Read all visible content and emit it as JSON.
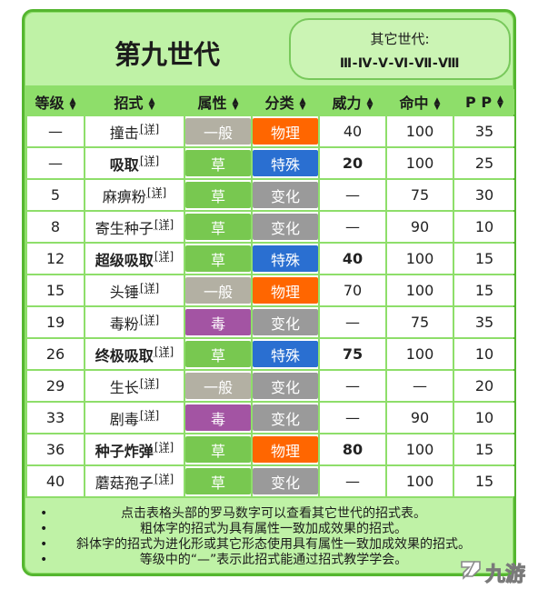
{
  "header": {
    "generation_title": "第九世代",
    "other_generations_label": "其它世代:",
    "other_generations_links": "Ⅲ-Ⅳ-Ⅴ-Ⅵ-Ⅶ-Ⅷ"
  },
  "table": {
    "columns": [
      "等级",
      "招式",
      "属性",
      "分类",
      "威力",
      "命中",
      "P P"
    ],
    "detail_label": "[详]",
    "rows": [
      {
        "level": "—",
        "move": "撞击",
        "bold": false,
        "type": "一般",
        "category": "物理",
        "power": "40",
        "accuracy": "100",
        "pp": "35"
      },
      {
        "level": "—",
        "move": "吸取",
        "bold": true,
        "type": "草",
        "category": "特殊",
        "power": "20",
        "accuracy": "100",
        "pp": "25"
      },
      {
        "level": "5",
        "move": "麻痹粉",
        "bold": false,
        "type": "草",
        "category": "变化",
        "power": "—",
        "accuracy": "75",
        "pp": "30"
      },
      {
        "level": "8",
        "move": "寄生种子",
        "bold": false,
        "type": "草",
        "category": "变化",
        "power": "—",
        "accuracy": "90",
        "pp": "10"
      },
      {
        "level": "12",
        "move": "超级吸取",
        "bold": true,
        "type": "草",
        "category": "特殊",
        "power": "40",
        "accuracy": "100",
        "pp": "15"
      },
      {
        "level": "15",
        "move": "头锤",
        "bold": false,
        "type": "一般",
        "category": "物理",
        "power": "70",
        "accuracy": "100",
        "pp": "15"
      },
      {
        "level": "19",
        "move": "毒粉",
        "bold": false,
        "type": "毒",
        "category": "变化",
        "power": "—",
        "accuracy": "75",
        "pp": "35"
      },
      {
        "level": "26",
        "move": "终极吸取",
        "bold": true,
        "type": "草",
        "category": "特殊",
        "power": "75",
        "accuracy": "100",
        "pp": "10"
      },
      {
        "level": "29",
        "move": "生长",
        "bold": false,
        "type": "一般",
        "category": "变化",
        "power": "—",
        "accuracy": "—",
        "pp": "20"
      },
      {
        "level": "33",
        "move": "剧毒",
        "bold": false,
        "type": "毒",
        "category": "变化",
        "power": "—",
        "accuracy": "90",
        "pp": "10"
      },
      {
        "level": "36",
        "move": "种子炸弹",
        "bold": true,
        "type": "草",
        "category": "物理",
        "power": "80",
        "accuracy": "100",
        "pp": "15"
      },
      {
        "level": "40",
        "move": "蘑菇孢子",
        "bold": false,
        "type": "草",
        "category": "变化",
        "power": "—",
        "accuracy": "100",
        "pp": "15"
      }
    ]
  },
  "colors": {
    "type_normal": "#b3b0a3",
    "type_grass": "#78c850",
    "type_poison": "#a354a3",
    "category_physical": "#ff6600",
    "category_special": "#2a6fd1",
    "category_status": "#9a9a9a",
    "frame_border": "#55b630",
    "header_bg": "#bff2a6"
  },
  "notes": [
    "点击表格头部的罗马数字可以查看其它世代的招式表。",
    "粗体字的招式为具有属性一致加成效果的招式。",
    "斜体字的招式为进化形或其它形态使用具有属性一致加成效果的招式。",
    "等级中的“—”表示此招式能通过招式教学学会。"
  ],
  "watermark": {
    "text": "九游",
    "icon": "jiuyou-logo-icon"
  }
}
